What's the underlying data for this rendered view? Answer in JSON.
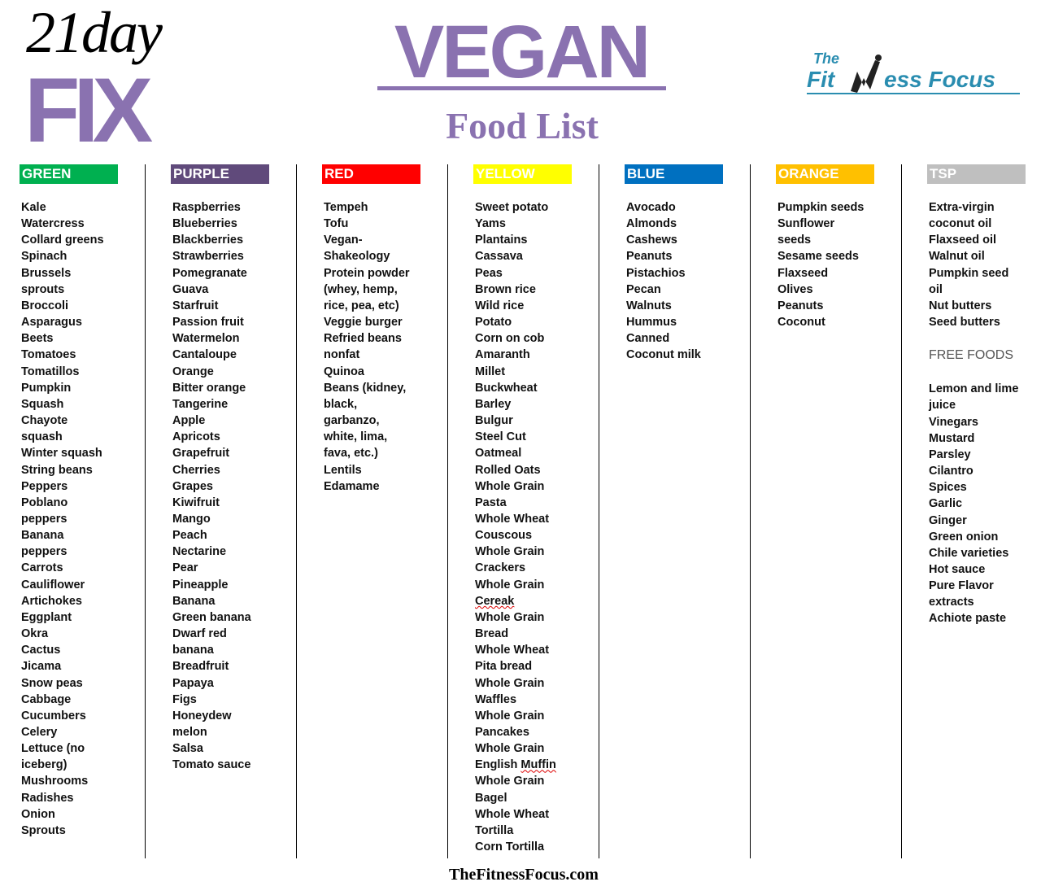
{
  "logo": {
    "top": "21day",
    "bottom": "FIX"
  },
  "title": "VEGAN",
  "subtitle": "Food List",
  "brand_logo": {
    "the": "The",
    "fit": "Fit",
    "ess": "ess Focus"
  },
  "columns": [
    {
      "label": "GREEN",
      "color": "#00b050",
      "text_color": "#ffffff",
      "items": [
        "Kale",
        "Watercress",
        "Collard greens",
        "Spinach",
        "Brussels",
        "sprouts",
        "Broccoli",
        "Asparagus",
        "Beets",
        "Tomatoes",
        "Tomatillos",
        "Pumpkin",
        "Squash",
        "Chayote",
        "squash",
        "Winter squash",
        "String beans",
        "Peppers",
        "Poblano",
        "peppers",
        "Banana",
        "peppers",
        "Carrots",
        "Cauliflower",
        "Artichokes",
        "Eggplant",
        "Okra",
        "Cactus",
        "Jicama",
        "Snow peas",
        "Cabbage",
        "Cucumbers",
        "Celery",
        "Lettuce (no",
        "iceberg)",
        "Mushrooms",
        "Radishes",
        "Onion",
        "Sprouts"
      ]
    },
    {
      "label": "PURPLE",
      "color": "#604a7b",
      "text_color": "#ffffff",
      "items": [
        "Raspberries",
        "Blueberries",
        "Blackberries",
        "Strawberries",
        "Pomegranate",
        "Guava",
        "Starfruit",
        "Passion fruit",
        "Watermelon",
        "Cantaloupe",
        "Orange",
        "Bitter orange",
        "Tangerine",
        "Apple",
        "Apricots",
        "Grapefruit",
        "Cherries",
        "Grapes",
        "Kiwifruit",
        "Mango",
        "Peach",
        "Nectarine",
        "Pear",
        "Pineapple",
        "Banana",
        "Green banana",
        "Dwarf red",
        "banana",
        "Breadfruit",
        "Papaya",
        "Figs",
        "Honeydew",
        "melon",
        "Salsa",
        "Tomato sauce"
      ]
    },
    {
      "label": "RED",
      "color": "#ff0000",
      "text_color": "#ffffff",
      "items": [
        "Tempeh",
        "Tofu",
        "Vegan-",
        "Shakeology",
        "Protein powder",
        "(whey, hemp,",
        "rice, pea, etc)",
        "Veggie burger",
        "Refried beans",
        "nonfat",
        "Quinoa",
        "Beans (kidney,",
        "black,",
        "garbanzo,",
        "white, lima,",
        "fava, etc.)",
        "Lentils",
        "Edamame"
      ]
    },
    {
      "label": "YELLOW",
      "color": "#ffff00",
      "text_color": "#ffffff",
      "items": [
        "Sweet potato",
        "Yams",
        "Plantains",
        "Cassava",
        "Peas",
        "Brown rice",
        "Wild rice",
        "Potato",
        "Corn on cob",
        "Amaranth",
        "Millet",
        "Buckwheat",
        "Barley",
        "Bulgur",
        "Steel Cut",
        "Oatmeal",
        "Rolled Oats",
        "Whole Grain",
        "Pasta",
        "Whole Wheat",
        "Couscous",
        "Whole Grain",
        "Crackers",
        "Whole Grain",
        "Cereak",
        "Whole Grain",
        "Bread",
        "Whole Wheat",
        "Pita bread",
        "Whole Grain",
        "Waffles",
        "Whole Grain",
        "Pancakes",
        "Whole Grain",
        "English Muffin",
        "Whole Grain",
        "Bagel",
        "Whole Wheat",
        "Tortilla",
        "Corn Tortilla"
      ]
    },
    {
      "label": "BLUE",
      "color": "#0070c0",
      "text_color": "#ffffff",
      "items": [
        "Avocado",
        "Almonds",
        "Cashews",
        "Peanuts",
        "Pistachios",
        "Pecan",
        "Walnuts",
        "Hummus",
        "Canned",
        "Coconut milk"
      ]
    },
    {
      "label": "ORANGE",
      "color": "#ffc000",
      "text_color": "#ffffff",
      "items": [
        "Pumpkin seeds",
        "Sunflower",
        "seeds",
        "Sesame seeds",
        "Flaxseed",
        "Olives",
        "Peanuts",
        "Coconut"
      ]
    },
    {
      "label": "TSP",
      "color": "#bfbfbf",
      "text_color": "#ffffff",
      "items": [
        "Extra-virgin",
        "coconut oil",
        "Flaxseed oil",
        "Walnut oil",
        "Pumpkin seed",
        "oil",
        "Nut butters",
        "Seed butters"
      ]
    }
  ],
  "free_foods": {
    "title": "FREE FOODS",
    "items": [
      "Lemon and lime",
      "juice",
      "Vinegars",
      "Mustard",
      "Parsley",
      "Cilantro",
      "Spices",
      "Garlic",
      "Ginger",
      "Green onion",
      "Chile varieties",
      "Hot sauce",
      "Pure Flavor",
      "extracts",
      "Achiote paste"
    ]
  },
  "footer": "TheFitnessFocus.com"
}
